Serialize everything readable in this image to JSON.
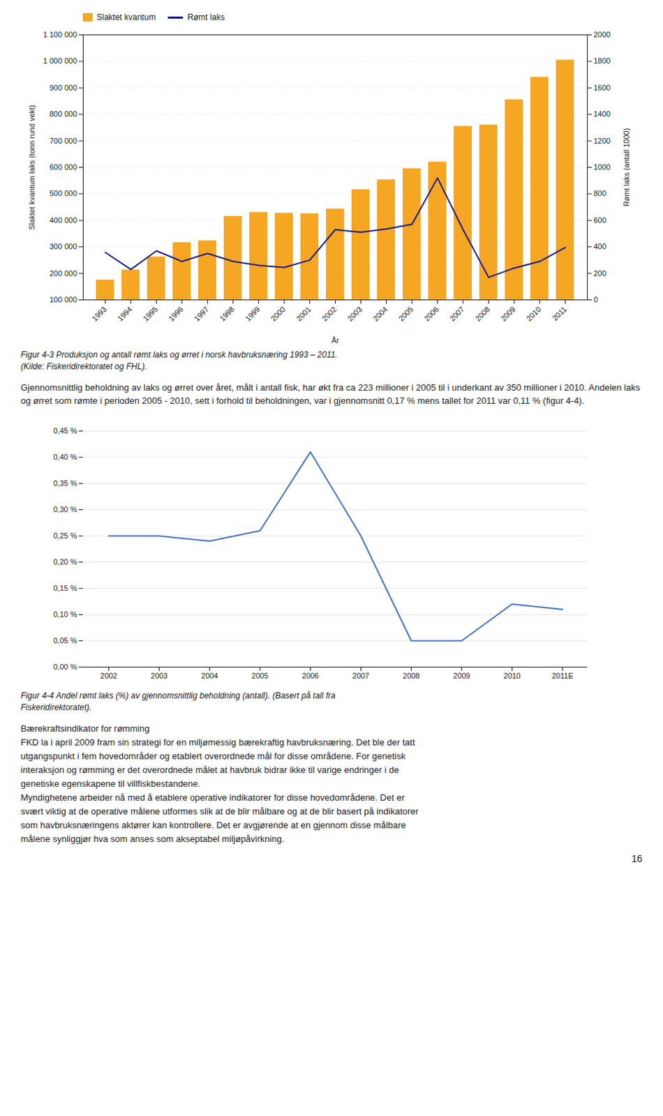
{
  "chart_data": [
    {
      "type": "bar",
      "categories": [
        "1993",
        "1994",
        "1995",
        "1996",
        "1997",
        "1998",
        "1999",
        "2000",
        "2001",
        "2002",
        "2003",
        "2004",
        "2005",
        "2006",
        "2007",
        "2008",
        "2009",
        "2010",
        "2011"
      ],
      "series": [
        {
          "name": "Slaktet kvantum",
          "type": "bar",
          "color": "#F5A623",
          "values": [
            175000,
            213000,
            262000,
            316000,
            323000,
            415000,
            430000,
            427000,
            425000,
            443000,
            516000,
            553000,
            595000,
            620000,
            755000,
            760000,
            855000,
            940000,
            1005000
          ]
        },
        {
          "name": "Rømt laks",
          "type": "line",
          "color": "#1a1a8c",
          "axis": "y2",
          "values": [
            358,
            230,
            370,
            290,
            350,
            290,
            260,
            245,
            300,
            530,
            510,
            535,
            570,
            920,
            530,
            170,
            240,
            290,
            395
          ]
        }
      ],
      "xlabel": "År",
      "ylabel": "Slaktet kvantum laks (tonn rund vekt)",
      "y2label": "Rømt laks (antall 1000)",
      "ylim": [
        100000,
        1100000
      ],
      "yticks": [
        {
          "value": 100000,
          "label": "100 000"
        },
        {
          "value": 200000,
          "label": "200 000"
        },
        {
          "value": 300000,
          "label": "300 000"
        },
        {
          "value": 400000,
          "label": "400 000"
        },
        {
          "value": 500000,
          "label": "500 000"
        },
        {
          "value": 600000,
          "label": "600 000"
        },
        {
          "value": 700000,
          "label": "700 000"
        },
        {
          "value": 800000,
          "label": "800 000"
        },
        {
          "value": 900000,
          "label": "900 000"
        },
        {
          "value": 1000000,
          "label": "1 000 000"
        },
        {
          "value": 1100000,
          "label": "1 100 000"
        }
      ],
      "y2lim": [
        0,
        2000
      ],
      "y2ticks": [
        0,
        200,
        400,
        600,
        800,
        1000,
        1200,
        1400,
        1600,
        1800,
        2000
      ],
      "grid": true,
      "legend": "upper left",
      "caption": [
        "Figur 4-3 Produksjon og antall rømt laks og ørret i norsk havbruksnæring 1993 – 2011.",
        "(Kilde: Fiskeridirektoratet og FHL)."
      ],
      "annotations": [
        "Gjennomsnittlig beholdning av laks og ørret over året, målt i antall fisk, har økt fra ca 223 millioner i 2005 til i underkant av 350 millioner i 2010. Andelen laks og ørret som rømte i perioden 2005 - 2010, sett i forhold til beholdningen, var i gjennomsnitt 0,17 % mens tallet for 2011 var 0,11 % (figur 4-4)."
      ]
    },
    {
      "type": "line",
      "categories": [
        "2002",
        "2003",
        "2004",
        "2005",
        "2006",
        "2007",
        "2008",
        "2009",
        "2010",
        "2011E"
      ],
      "values": [
        0.0025,
        0.0025,
        0.0024,
        0.0026,
        0.0041,
        0.0025,
        0.0005,
        0.0005,
        0.0012,
        0.0011
      ],
      "color": "#4472C4",
      "ylim": [
        0.0,
        0.0045
      ],
      "yticks": [
        {
          "value": 0.0,
          "label": "0,00 %"
        },
        {
          "value": 0.0005,
          "label": "0,05 %"
        },
        {
          "value": 0.001,
          "label": "0,10 %"
        },
        {
          "value": 0.0015,
          "label": "0,15 %"
        },
        {
          "value": 0.002,
          "label": "0,20 %"
        },
        {
          "value": 0.0025,
          "label": "0,25 %"
        },
        {
          "value": 0.003,
          "label": "0,30 %"
        },
        {
          "value": 0.0035,
          "label": "0,35 %"
        },
        {
          "value": 0.004,
          "label": "0,40 %"
        },
        {
          "value": 0.0045,
          "label": "0,45 %"
        }
      ],
      "grid": true,
      "caption": [
        "Figur 4-4 Andel rømt laks (%) av gjennomsnittlig beholdning (antall). (Basert på tall fra",
        "Fiskeridirektoratet)."
      ],
      "annotations": [
        "Bærekraftsindikator for rømming",
        "FKD la i april 2009 fram sin strategi for en miljømessig bærekraftig havbruksnæring. Det ble der tatt",
        "utgangspunkt i fem hovedområder og etablert overordnede mål for disse områdene. For genetisk",
        "interaksjon og rømming er det overordnede målet at havbruk bidrar ikke til varige endringer i de",
        "genetiske egenskapene til villfiskbestandene.",
        "Myndighetene arbeider nå med å etablere operative indikatorer for disse hovedområdene. Det er",
        "svært viktig at de operative målene utformes slik at de blir målbare og at de blir basert på indikatorer",
        "som havbruksnæringens aktører kan kontrollere. Det er avgjørende at en gjennom disse målbare",
        "målene synliggjør hva som anses som akseptabel miljøpåvirkning."
      ]
    }
  ],
  "page_number": "16"
}
